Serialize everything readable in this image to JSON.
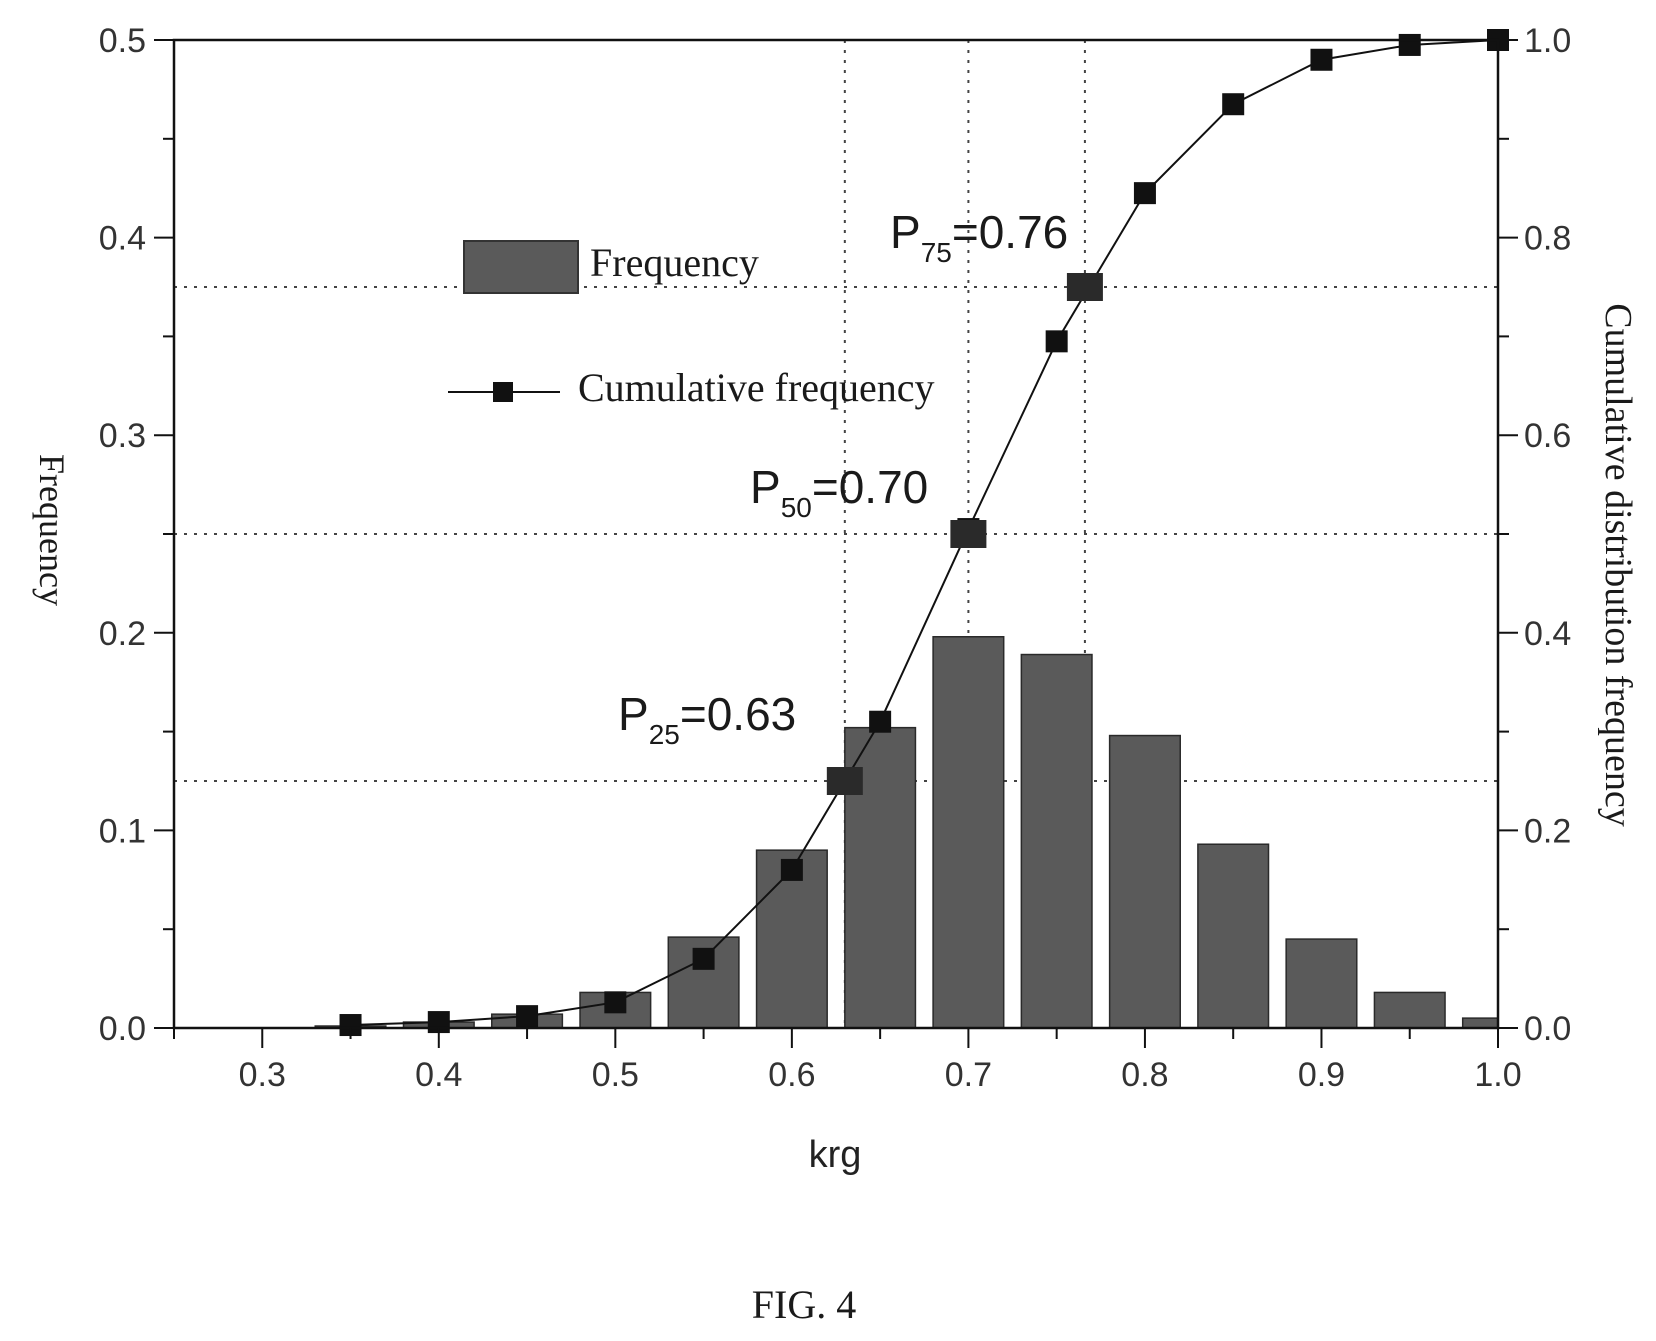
{
  "chart_data": {
    "type": "bar",
    "xlabel": "krg",
    "ylabel": "Frequency",
    "y2label": "Cumulative distribution frequency",
    "caption": "FIG. 4",
    "xlim": [
      0.25,
      1.0
    ],
    "ylim": [
      0,
      0.5
    ],
    "y2lim": [
      0,
      1.0
    ],
    "x_ticks": [
      "0.3",
      "0.4",
      "0.5",
      "0.6",
      "0.7",
      "0.8",
      "0.9",
      "1.0"
    ],
    "y_ticks": [
      "0.0",
      "0.1",
      "0.2",
      "0.3",
      "0.4",
      "0.5"
    ],
    "y2_ticks": [
      "0.0",
      "0.2",
      "0.4",
      "0.6",
      "0.8",
      "1.0"
    ],
    "legend": {
      "placement": "upper-left",
      "entries": [
        "Frequency",
        "Cumulative frequency"
      ]
    },
    "series": [
      {
        "name": "Frequency",
        "kind": "bar",
        "axis": "left",
        "color": "#5a5a5a",
        "x": [
          0.35,
          0.4,
          0.45,
          0.5,
          0.55,
          0.6,
          0.65,
          0.7,
          0.75,
          0.8,
          0.85,
          0.9,
          0.95,
          1.0
        ],
        "values": [
          0.001,
          0.003,
          0.007,
          0.018,
          0.046,
          0.09,
          0.152,
          0.198,
          0.189,
          0.148,
          0.093,
          0.045,
          0.018,
          0.005
        ]
      },
      {
        "name": "Cumulative frequency",
        "kind": "line-marker",
        "axis": "right",
        "color": "#111111",
        "x": [
          0.35,
          0.4,
          0.45,
          0.5,
          0.55,
          0.6,
          0.65,
          0.7,
          0.75,
          0.8,
          0.85,
          0.9,
          0.95,
          1.0
        ],
        "values": [
          0.003,
          0.006,
          0.012,
          0.026,
          0.07,
          0.16,
          0.31,
          0.505,
          0.695,
          0.845,
          0.935,
          0.98,
          0.995,
          1.0
        ]
      }
    ],
    "percentile_markers": [
      {
        "prefix": "P",
        "sub": "25",
        "value_text": "=0.63",
        "x": 0.63,
        "y2": 0.25
      },
      {
        "prefix": "P",
        "sub": "50",
        "value_text": "=0.70",
        "x": 0.7,
        "y2": 0.5
      },
      {
        "prefix": "P",
        "sub": "75",
        "value_text": "=0.76",
        "x": 0.766,
        "y2": 0.75
      }
    ]
  }
}
